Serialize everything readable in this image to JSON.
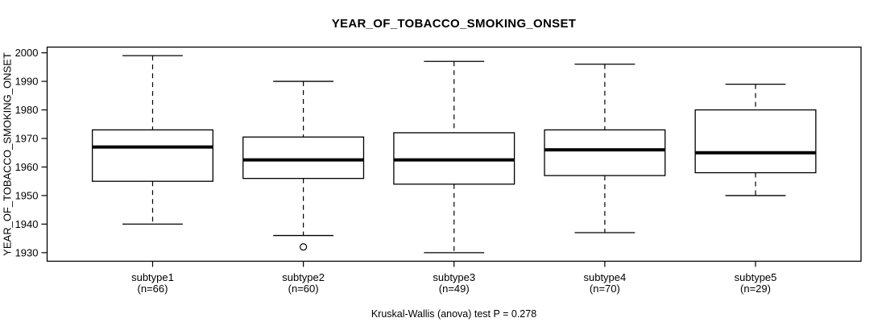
{
  "title": "YEAR_OF_TOBACCO_SMOKING_ONSET",
  "y_axis_label": "YEAR_OF_TOBACCO_SMOKING_ONSET",
  "footer": "Kruskal-Wallis (anova) test P = 0.278",
  "chart_data": {
    "type": "boxplot",
    "title": "YEAR_OF_TOBACCO_SMOKING_ONSET",
    "xlabel": "",
    "ylabel": "YEAR_OF_TOBACCO_SMOKING_ONSET",
    "ylim": [
      1927,
      2002
    ],
    "yticks": [
      1930,
      1940,
      1950,
      1960,
      1970,
      1980,
      1990,
      2000
    ],
    "grid": false,
    "legend": "none",
    "categories": [
      "subtype1",
      "subtype2",
      "subtype3",
      "subtype4",
      "subtype5"
    ],
    "count_labels": [
      "(n=66)",
      "(n=60)",
      "(n=49)",
      "(n=70)",
      "(n=29)"
    ],
    "boxes": [
      {
        "label": "subtype1",
        "n": 66,
        "whisker_low": 1940,
        "q1": 1955,
        "median": 1967,
        "q3": 1973,
        "whisker_high": 1999,
        "outliers": []
      },
      {
        "label": "subtype2",
        "n": 60,
        "whisker_low": 1936,
        "q1": 1956,
        "median": 1962.5,
        "q3": 1970.5,
        "whisker_high": 1990,
        "outliers": [
          1932
        ]
      },
      {
        "label": "subtype3",
        "n": 49,
        "whisker_low": 1930,
        "q1": 1954,
        "median": 1962.5,
        "q3": 1972,
        "whisker_high": 1997,
        "outliers": []
      },
      {
        "label": "subtype4",
        "n": 70,
        "whisker_low": 1937,
        "q1": 1957,
        "median": 1966,
        "q3": 1973,
        "whisker_high": 1996,
        "outliers": []
      },
      {
        "label": "subtype5",
        "n": 29,
        "whisker_low": 1950,
        "q1": 1958,
        "median": 1965,
        "q3": 1980,
        "whisker_high": 1989,
        "outliers": []
      }
    ],
    "annotation": "Kruskal-Wallis (anova) test P = 0.278",
    "colors": {
      "background": "#ffffff",
      "box_fill": "#ffffff",
      "stroke": "#000000",
      "median": "#000000"
    }
  }
}
